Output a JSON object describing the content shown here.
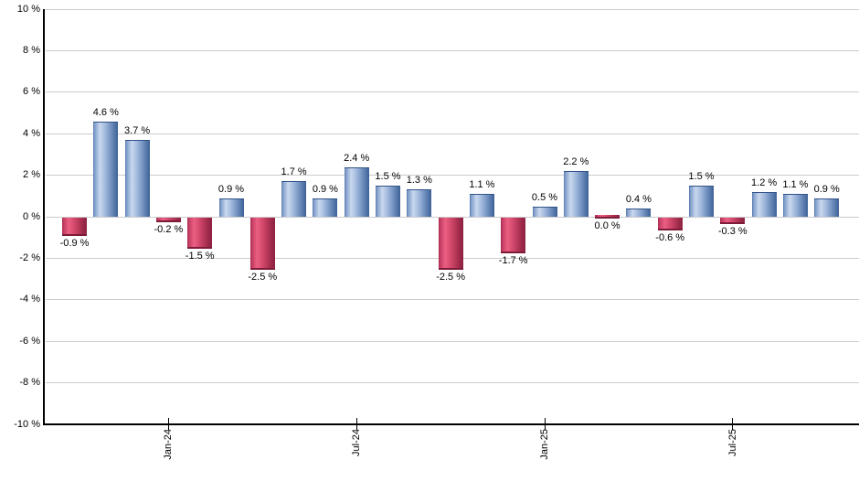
{
  "chart_data": {
    "type": "bar",
    "title": "",
    "xlabel": "",
    "ylabel": "",
    "ylim": [
      -10,
      10
    ],
    "ytick_step": 2,
    "grid": true,
    "legend_position": "none",
    "y_tick_labels": [
      "10 %",
      "8 %",
      "6 %",
      "4 %",
      "2 %",
      "0 %",
      "-2 %",
      "-4 %",
      "-6 %",
      "-8 %",
      "-10 %"
    ],
    "x_tick_labels": [
      "Jan-24",
      "Jul-24",
      "Jan-25",
      "Jul-25"
    ],
    "x_ticks": [
      {
        "label": "Jan-24",
        "bar_index": 3
      },
      {
        "label": "Jul-24",
        "bar_index": 9
      },
      {
        "label": "Jan-25",
        "bar_index": 15
      },
      {
        "label": "Jul-25",
        "bar_index": 21
      }
    ],
    "bars": [
      {
        "value": -0.9,
        "label": "-0.9 %"
      },
      {
        "value": 4.6,
        "label": "4.6 %"
      },
      {
        "value": 3.7,
        "label": "3.7 %"
      },
      {
        "value": -0.2,
        "label": "-0.2 %"
      },
      {
        "value": -1.5,
        "label": "-1.5 %"
      },
      {
        "value": 0.9,
        "label": "0.9 %"
      },
      {
        "value": -2.5,
        "label": "-2.5 %"
      },
      {
        "value": 1.7,
        "label": "1.7 %"
      },
      {
        "value": 0.9,
        "label": "0.9 %"
      },
      {
        "value": 2.4,
        "label": "2.4 %"
      },
      {
        "value": 1.5,
        "label": "1.5 %"
      },
      {
        "value": 1.3,
        "label": "1.3 %"
      },
      {
        "value": -2.5,
        "label": "-2.5 %"
      },
      {
        "value": 1.1,
        "label": "1.1 %"
      },
      {
        "value": -1.7,
        "label": "-1.7 %"
      },
      {
        "value": 0.5,
        "label": "0.5 %"
      },
      {
        "value": 2.2,
        "label": "2.2 %"
      },
      {
        "value": 0.0,
        "label": "0.0 %"
      },
      {
        "value": 0.4,
        "label": "0.4 %"
      },
      {
        "value": -0.6,
        "label": "-0.6 %"
      },
      {
        "value": 1.5,
        "label": "1.5 %"
      },
      {
        "value": -0.3,
        "label": "-0.3 %"
      },
      {
        "value": 1.2,
        "label": "1.2 %"
      },
      {
        "value": 1.1,
        "label": "1.1 %"
      },
      {
        "value": 0.9,
        "label": "0.9 %"
      }
    ],
    "colors": {
      "positive_gradient": [
        [
          "#5577aa",
          0
        ],
        [
          "#7d9bc8",
          5
        ],
        [
          "#c9d8ee",
          27
        ],
        [
          "#a8bedf",
          45
        ],
        [
          "#8aa5cf",
          60
        ],
        [
          "#6c8cba",
          75
        ],
        [
          "#4f73a6",
          90
        ],
        [
          "#3c5f95",
          100
        ]
      ],
      "negative_gradient": [
        [
          "#a62c50",
          0
        ],
        [
          "#c84066",
          8
        ],
        [
          "#ea5f82",
          27
        ],
        [
          "#d44a6e",
          48
        ],
        [
          "#b83858",
          68
        ],
        [
          "#9c2a4a",
          85
        ],
        [
          "#8e2242",
          100
        ]
      ],
      "grid": "#cccccc",
      "axis": "#000000",
      "label": "#000000"
    }
  }
}
